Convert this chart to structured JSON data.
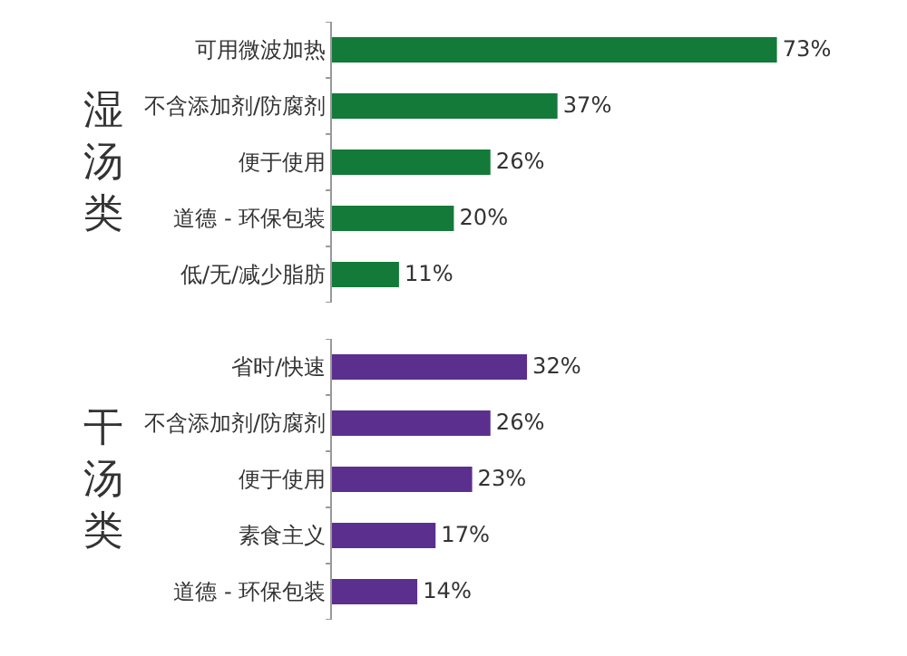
{
  "chart_data": [
    {
      "type": "bar",
      "orientation": "horizontal",
      "ylabel": "湿汤类",
      "categories": [
        "可用微波加热",
        "不含添加剂/防腐剂",
        "便于使用",
        "道德 - 环保包装",
        "低/无/减少脂肪"
      ],
      "values": [
        73,
        37,
        26,
        20,
        11
      ],
      "value_labels": [
        "73%",
        "37%",
        "26%",
        "20%",
        "11%"
      ],
      "color": "#137a3a",
      "tick_labels": "y"
    },
    {
      "type": "bar",
      "orientation": "horizontal",
      "ylabel": "干汤类",
      "categories": [
        "省时/快速",
        "不含添加剂/防腐剂",
        "便于使用",
        "素食主义",
        "道德 - 环保包装"
      ],
      "values": [
        32,
        26,
        23,
        17,
        14
      ],
      "value_labels": [
        "32%",
        "26%",
        "23%",
        "17%",
        "14%"
      ],
      "color": "#5b2f8e",
      "tick_labels": "y"
    }
  ]
}
